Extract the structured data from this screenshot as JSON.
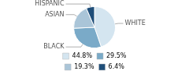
{
  "chart_data": {
    "type": "pie",
    "categories": [
      "WHITE",
      "BLACK",
      "ASIAN",
      "HISPANIC"
    ],
    "values": [
      44.8,
      29.5,
      19.3,
      6.4
    ],
    "value_labels": [
      "44.8%",
      "29.5%",
      "19.3%",
      "6.4%"
    ],
    "colors": [
      "#d4e5f0",
      "#7aaac8",
      "#aac5d8",
      "#1f4e79"
    ],
    "legend": "bottom"
  }
}
